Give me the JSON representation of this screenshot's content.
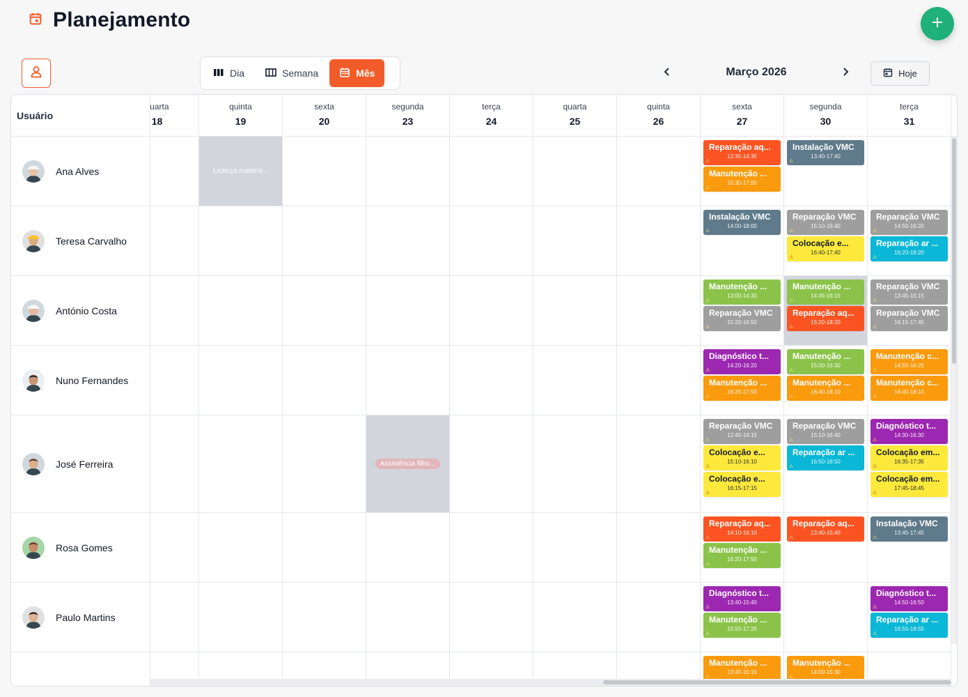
{
  "header": {
    "title": "Planejamento"
  },
  "view_switch": {
    "day": "Dia",
    "week": "Semana",
    "month": "Mês",
    "active": "month"
  },
  "navigation": {
    "month_label": "Março 2026",
    "today_label": "Hoje"
  },
  "grid": {
    "user_column_header": "Usuário"
  },
  "colors": {
    "accent": "#f25c2a",
    "fab": "#20b07a",
    "event_types": {
      "red": "#fb5422",
      "slate": "#5f7a8a",
      "orange": "#fa9a0d",
      "gray": "#9e9e9e",
      "yellow": "#fde93c",
      "green": "#8bc34a",
      "purple": "#9c27b0",
      "cyan": "#0ab7d6"
    }
  },
  "days": [
    {
      "name": "quarta",
      "num": "18"
    },
    {
      "name": "quinta",
      "num": "19"
    },
    {
      "name": "sexta",
      "num": "20"
    },
    {
      "name": "segunda",
      "num": "23"
    },
    {
      "name": "terça",
      "num": "24"
    },
    {
      "name": "quarta",
      "num": "25"
    },
    {
      "name": "quinta",
      "num": "26"
    },
    {
      "name": "sexta",
      "num": "27"
    },
    {
      "name": "segunda",
      "num": "30"
    },
    {
      "name": "terça",
      "num": "31"
    }
  ],
  "users": [
    {
      "name": "Ana Alves",
      "avatar": "woman-hardhat-avatar",
      "absence": {
        "day": 1,
        "label": "Licença materni..."
      },
      "events": [
        {
          "day": 7,
          "title": "Reparação aq...",
          "time": "12:35-14:35",
          "color": "red"
        },
        {
          "day": 7,
          "title": "Manutenção ...",
          "time": "15:30-17:00",
          "color": "orange"
        },
        {
          "day": 8,
          "title": "Instalação VMC",
          "time": "13:40-17:40",
          "color": "slate"
        }
      ]
    },
    {
      "name": "Teresa Carvalho",
      "avatar": "woman-yellow-helmet-avatar",
      "events": [
        {
          "day": 7,
          "title": "Instalação VMC",
          "time": "14:00-18:00",
          "color": "slate"
        },
        {
          "day": 8,
          "title": "Reparação VMC",
          "time": "15:10-16:40",
          "color": "gray"
        },
        {
          "day": 8,
          "title": "Colocação e...",
          "time": "16:40-17:40",
          "color": "yellow"
        },
        {
          "day": 9,
          "title": "Reparação VMC",
          "time": "14:50-16:20",
          "color": "gray"
        },
        {
          "day": 9,
          "title": "Reparação ar ...",
          "time": "16:20-18:20",
          "color": "cyan"
        }
      ]
    },
    {
      "name": "António Costa",
      "avatar": "man-white-helmet-avatar",
      "highlight_day": 8,
      "events": [
        {
          "day": 7,
          "title": "Manutenção ...",
          "time": "13:00-14:30",
          "color": "green"
        },
        {
          "day": 7,
          "title": "Reparação VMC",
          "time": "15:20-16:50",
          "color": "gray"
        },
        {
          "day": 8,
          "title": "Manutenção ...",
          "time": "14:45-16:15",
          "color": "green"
        },
        {
          "day": 8,
          "title": "Reparação aq...",
          "time": "16:20-18:20",
          "color": "red"
        },
        {
          "day": 9,
          "title": "Reparação VMC",
          "time": "13:45-15:15",
          "color": "gray"
        },
        {
          "day": 9,
          "title": "Reparação VMC",
          "time": "16:15-17:45",
          "color": "gray"
        }
      ]
    },
    {
      "name": "Nuno Fernandes",
      "avatar": "man-suit-avatar",
      "events": [
        {
          "day": 7,
          "title": "Diagnóstico t...",
          "time": "14:20-16:20",
          "color": "purple"
        },
        {
          "day": 7,
          "title": "Manutenção ...",
          "time": "16:25-17:55",
          "color": "orange"
        },
        {
          "day": 8,
          "title": "Manutenção ...",
          "time": "15:00-16:30",
          "color": "green"
        },
        {
          "day": 8,
          "title": "Manutenção ...",
          "time": "16:40-18:10",
          "color": "orange"
        },
        {
          "day": 9,
          "title": "Manutenção c...",
          "time": "14:55-16:25",
          "color": "orange"
        },
        {
          "day": 9,
          "title": "Manutenção c...",
          "time": "16:40-18:10",
          "color": "orange"
        }
      ]
    },
    {
      "name": "José Ferreira",
      "avatar": "man-beard-avatar",
      "absence": {
        "day": 3,
        "label": "Assistência filho..."
      },
      "events": [
        {
          "day": 7,
          "title": "Reparação VMC",
          "time": "12:45-14:15",
          "color": "gray"
        },
        {
          "day": 7,
          "title": "Colocação e...",
          "time": "15:10-16:10",
          "color": "yellow"
        },
        {
          "day": 7,
          "title": "Colocação e...",
          "time": "16:15-17:15",
          "color": "yellow"
        },
        {
          "day": 8,
          "title": "Reparação VMC",
          "time": "15:10-16:40",
          "color": "gray"
        },
        {
          "day": 8,
          "title": "Reparação ar ...",
          "time": "16:50-18:50",
          "color": "cyan"
        },
        {
          "day": 9,
          "title": "Diagnóstico t...",
          "time": "14:30-16:30",
          "color": "purple"
        },
        {
          "day": 9,
          "title": "Colocação em...",
          "time": "16:35-17:35",
          "color": "yellow"
        },
        {
          "day": 9,
          "title": "Colocação em...",
          "time": "17:45-18:45",
          "color": "yellow"
        }
      ]
    },
    {
      "name": "Rosa Gomes",
      "avatar": "woman-curly-avatar",
      "events": [
        {
          "day": 7,
          "title": "Reparação aq...",
          "time": "14:10-16:10",
          "color": "red"
        },
        {
          "day": 7,
          "title": "Manutenção ...",
          "time": "16:20-17:50",
          "color": "green"
        },
        {
          "day": 8,
          "title": "Reparação aq...",
          "time": "13:40-15:40",
          "color": "red"
        },
        {
          "day": 9,
          "title": "Instalação VMC",
          "time": "13:45-17:45",
          "color": "slate"
        }
      ]
    },
    {
      "name": "Paulo Martins",
      "avatar": "man-dark-hair-avatar",
      "events": [
        {
          "day": 7,
          "title": "Diagnóstico t...",
          "time": "13:40-15:40",
          "color": "purple"
        },
        {
          "day": 7,
          "title": "Manutenção ...",
          "time": "15:55-17:25",
          "color": "green"
        },
        {
          "day": 9,
          "title": "Diagnóstico t...",
          "time": "14:50-16:50",
          "color": "purple"
        },
        {
          "day": 9,
          "title": "Reparação ar ...",
          "time": "16:55-18:55",
          "color": "cyan"
        }
      ]
    },
    {
      "name": "",
      "avatar": "",
      "events": [
        {
          "day": 7,
          "title": "Manutenção ...",
          "time": "13:45-15:15",
          "color": "orange"
        },
        {
          "day": 8,
          "title": "Manutenção ...",
          "time": "14:00-15:30",
          "color": "orange"
        }
      ]
    }
  ]
}
